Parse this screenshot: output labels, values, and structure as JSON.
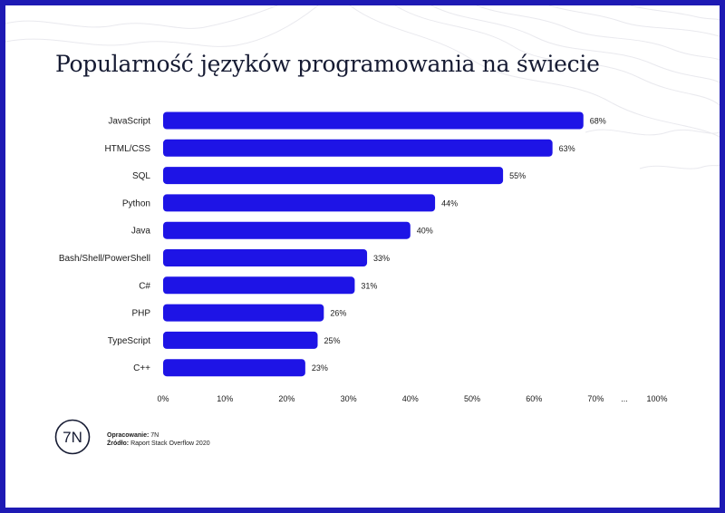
{
  "title": "Popularność języków programowania na świecie",
  "chart_data": {
    "type": "bar",
    "orientation": "horizontal",
    "categories": [
      "JavaScript",
      "HTML/CSS",
      "SQL",
      "Python",
      "Java",
      "Bash/Shell/PowerShell",
      "C#",
      "PHP",
      "TypeScript",
      "C++"
    ],
    "values": [
      68,
      63,
      55,
      44,
      40,
      33,
      31,
      26,
      25,
      23
    ],
    "value_labels": [
      "68%",
      "63%",
      "55%",
      "44%",
      "40%",
      "33%",
      "31%",
      "26%",
      "25%",
      "23%"
    ],
    "xlim": [
      0,
      80
    ],
    "x_ticks": [
      "0%",
      "10%",
      "20%",
      "30%",
      "40%",
      "50%",
      "60%",
      "70%",
      "...",
      "100%"
    ],
    "grid": false,
    "bar_color": "#1e14e6"
  },
  "footer": {
    "logo_text": "7N",
    "credit_label": "Opracowanie:",
    "credit_value": "7N",
    "source_label": "Źródło:",
    "source_value": "Raport Stack Overflow 2020"
  }
}
